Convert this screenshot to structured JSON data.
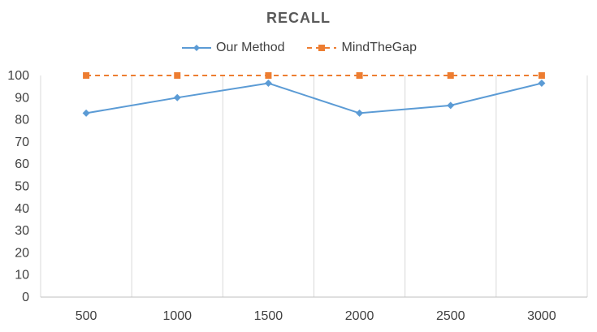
{
  "chart_data": {
    "type": "line",
    "title": "RECALL",
    "xlabel": "",
    "ylabel": "",
    "categories": [
      "500",
      "1000",
      "1500",
      "2000",
      "2500",
      "3000"
    ],
    "ylim": [
      0,
      100
    ],
    "yticks": [
      0,
      10,
      20,
      30,
      40,
      50,
      60,
      70,
      80,
      90,
      100
    ],
    "grid": "vertical",
    "legend_position": "top-center",
    "series": [
      {
        "name": "Our Method",
        "values": [
          83,
          90,
          96.5,
          83,
          86.5,
          96.5
        ],
        "color": "#5b9bd5",
        "marker": "diamond",
        "line": "solid"
      },
      {
        "name": "MindTheGap",
        "values": [
          100,
          100,
          100,
          100,
          100,
          100
        ],
        "color": "#ed7d31",
        "marker": "square",
        "line": "dashed"
      }
    ]
  }
}
